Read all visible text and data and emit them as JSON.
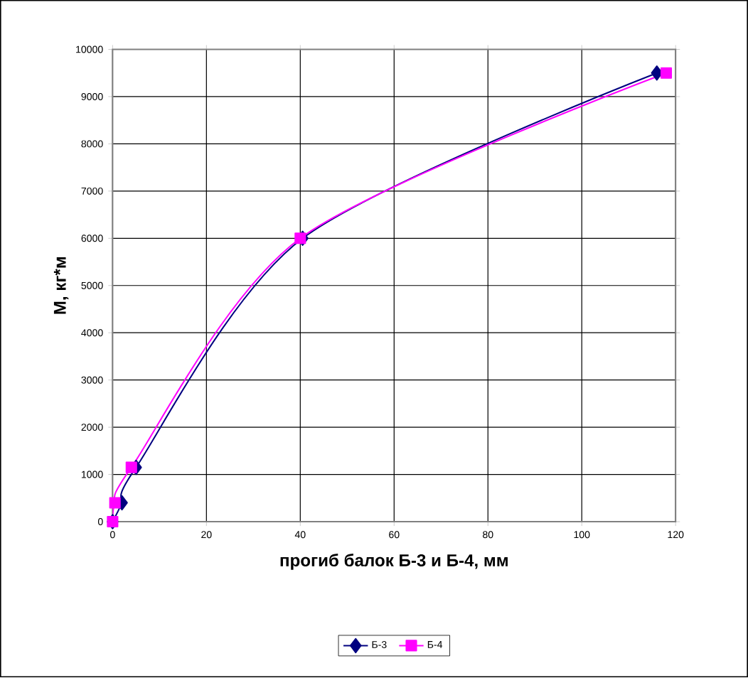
{
  "chart_data": {
    "type": "line",
    "xlabel": "прогиб балок Б-3 и Б-4, мм",
    "ylabel": "М, кг*м",
    "xlim": [
      0,
      120
    ],
    "xticks": [
      0,
      20,
      40,
      60,
      80,
      100,
      120
    ],
    "ylim": [
      0,
      10000
    ],
    "yticks": [
      0,
      1000,
      2000,
      3000,
      4000,
      5000,
      6000,
      7000,
      8000,
      9000,
      10000
    ],
    "grid": true,
    "legend": "bottom",
    "series": [
      {
        "name": "Б-3",
        "color": "#000080",
        "marker": "diamond",
        "x": [
          0,
          2,
          5,
          40.5,
          116
        ],
        "values": [
          0,
          400,
          1150,
          6000,
          9500
        ]
      },
      {
        "name": "Б-4",
        "color": "#ff00ff",
        "marker": "square",
        "x": [
          0,
          0.5,
          4,
          40,
          118
        ],
        "values": [
          0,
          400,
          1150,
          6000,
          9500
        ]
      }
    ]
  }
}
